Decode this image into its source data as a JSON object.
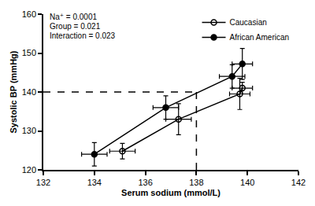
{
  "chart_data": {
    "type": "line",
    "x_label": "Serum sodium (mmol/L)",
    "y_label": "Systolic BP (mmHg)",
    "annotations": [
      "Na⁺ = 0.0001",
      "Group = 0.021",
      "Interaction = 0.023"
    ],
    "xlim": [
      132,
      142
    ],
    "xticks": [
      132,
      134,
      136,
      138,
      140,
      142
    ],
    "ylim": [
      120,
      160
    ],
    "yticks": [
      120,
      130,
      140,
      150,
      160
    ],
    "grid": false,
    "legend": "top right",
    "reference_point": {
      "x": 138,
      "y": 140,
      "line_style": "dashed"
    },
    "series": [
      {
        "name": "Caucasian",
        "color": "#000000",
        "marker": "open circle",
        "line_style": "solid",
        "x": [
          135.1,
          137.3,
          139.7,
          139.8
        ],
        "values": [
          124.8,
          133,
          139.5,
          141
        ],
        "x_error": [
          0.5,
          0.5,
          0.4,
          0.4
        ],
        "y_error": [
          2,
          4,
          4,
          1.5
        ]
      },
      {
        "name": "African American",
        "color": "#000000",
        "marker": "filled circle",
        "line_style": "solid",
        "x": [
          134,
          136.8,
          139.4,
          139.8
        ],
        "values": [
          124,
          136,
          144,
          147.2
        ],
        "x_error": [
          0.5,
          0.5,
          0.5,
          0.4
        ],
        "y_error": [
          3,
          3,
          3,
          4
        ]
      }
    ]
  }
}
